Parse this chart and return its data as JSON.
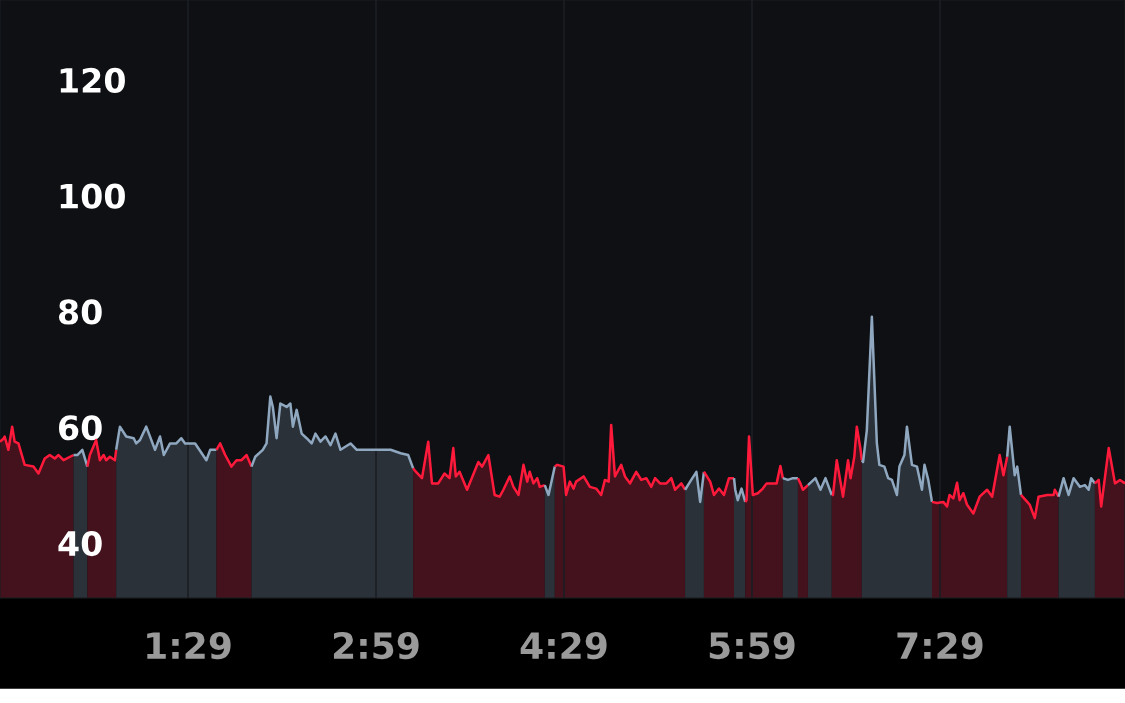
{
  "chart_data": {
    "type": "area",
    "xlim": [
      -0.017,
      8.96
    ],
    "ylim": [
      30.5,
      133.8
    ],
    "xticks": [
      {
        "value": 1.4833,
        "label": "1:29"
      },
      {
        "value": 2.9833,
        "label": "2:59"
      },
      {
        "value": 4.4833,
        "label": "4:29"
      },
      {
        "value": 5.9833,
        "label": "5:59"
      },
      {
        "value": 7.4833,
        "label": "7:29"
      }
    ],
    "yticks": [
      40,
      60,
      80,
      100,
      120
    ],
    "grid": "x",
    "line_style": "solid",
    "marker": "none",
    "series": [
      {
        "color": "#ff1a3c",
        "x": [
          -0.017,
          0.01,
          0.02,
          0.05,
          0.08,
          0.1,
          0.13,
          0.18,
          0.25,
          0.29,
          0.34,
          0.38,
          0.42,
          0.45,
          0.49,
          0.57
        ],
        "values": [
          57.5,
          58.0,
          58.4,
          56.1,
          60.1,
          57.5,
          57.2,
          53.5,
          53.2,
          52.0,
          54.6,
          55.2,
          54.6,
          55.2,
          54.3,
          55.2
        ]
      },
      {
        "color": "#8fa8c0",
        "x": [
          0.57,
          0.6,
          0.64,
          0.68
        ],
        "values": [
          55.2,
          55.2,
          56.1,
          53.2
        ]
      },
      {
        "color": "#ff1a3c",
        "x": [
          0.68,
          0.7,
          0.75,
          0.78,
          0.81,
          0.83,
          0.86,
          0.9,
          0.91
        ],
        "values": [
          53.2,
          55.2,
          57.8,
          54.3,
          55.2,
          54.3,
          54.9,
          54.3,
          56.1
        ]
      },
      {
        "color": "#8fa8c0",
        "x": [
          0.91,
          0.94,
          0.99,
          1.05,
          1.07,
          1.1,
          1.15,
          1.22,
          1.26,
          1.29,
          1.34,
          1.39,
          1.43,
          1.46,
          1.54,
          1.63,
          1.66,
          1.71
        ],
        "values": [
          56.1,
          60.1,
          58.4,
          58.1,
          57.2,
          57.8,
          60.1,
          56.1,
          58.4,
          55.2,
          57.2,
          57.2,
          58.1,
          57.2,
          57.2,
          54.3,
          56.1,
          56.1
        ]
      },
      {
        "color": "#ff1a3c",
        "x": [
          1.71,
          1.74,
          1.78,
          1.83,
          1.87,
          1.91,
          1.95,
          1.99
        ],
        "values": [
          56.1,
          57.2,
          55.2,
          53.2,
          54.3,
          54.3,
          55.2,
          53.2
        ]
      },
      {
        "color": "#8fa8c0",
        "x": [
          1.99,
          2.02,
          2.08,
          2.11,
          2.14,
          2.16,
          2.19,
          2.22,
          2.27,
          2.3,
          2.32,
          2.35,
          2.39,
          2.43,
          2.47,
          2.5,
          2.54,
          2.58,
          2.62,
          2.66,
          2.7,
          2.78,
          2.83,
          3.1,
          3.18,
          3.24,
          3.28
        ],
        "values": [
          53.2,
          54.9,
          56.1,
          57.2,
          65.3,
          63.5,
          58.1,
          64.1,
          63.5,
          64.1,
          60.1,
          63.0,
          58.9,
          58.1,
          57.2,
          58.9,
          57.5,
          58.4,
          56.9,
          58.9,
          56.1,
          57.2,
          56.1,
          56.1,
          55.5,
          55.2,
          52.9
        ]
      },
      {
        "color": "#ff1a3c",
        "x": [
          3.28,
          3.29,
          3.35,
          3.4,
          3.43,
          3.48,
          3.53,
          3.57,
          3.6,
          3.62,
          3.65,
          3.71,
          3.8,
          3.83,
          3.88,
          3.93,
          3.97,
          4.0,
          4.05,
          4.08,
          4.12,
          4.16,
          4.19,
          4.21,
          4.24,
          4.27,
          4.29,
          4.33
        ],
        "values": [
          52.9,
          52.6,
          51.2,
          57.5,
          50.3,
          50.3,
          52.0,
          51.2,
          56.4,
          51.5,
          52.3,
          49.2,
          54.0,
          53.2,
          55.2,
          48.3,
          48.0,
          49.2,
          51.5,
          49.7,
          48.3,
          53.5,
          50.6,
          52.3,
          50.3,
          51.2,
          49.7,
          50.0
        ]
      },
      {
        "color": "#8fa8c0",
        "x": [
          4.33,
          4.36,
          4.41
        ],
        "values": [
          50.0,
          48.3,
          53.2
        ]
      },
      {
        "color": "#ff1a3c",
        "x": [
          4.41,
          4.43,
          4.48,
          4.5,
          4.53,
          4.56,
          4.58,
          4.64,
          4.69,
          4.74,
          4.78,
          4.81,
          4.84,
          4.86,
          4.89,
          4.94,
          4.97,
          5.01,
          5.06,
          5.1,
          5.14,
          5.18,
          5.21,
          5.25,
          5.3,
          5.34,
          5.37,
          5.42,
          5.45
        ],
        "values": [
          53.2,
          53.5,
          53.2,
          48.3,
          50.6,
          49.4,
          50.6,
          51.5,
          49.7,
          49.4,
          48.3,
          50.9,
          50.6,
          60.4,
          51.5,
          53.5,
          51.5,
          50.3,
          52.3,
          50.9,
          51.2,
          49.7,
          51.2,
          50.3,
          50.3,
          51.2,
          49.2,
          50.3,
          49.2
        ]
      },
      {
        "color": "#8fa8c0",
        "x": [
          5.45,
          5.49,
          5.54,
          5.57,
          5.6
        ],
        "values": [
          49.2,
          50.6,
          52.3,
          47.1,
          52.3
        ]
      },
      {
        "color": "#ff1a3c",
        "x": [
          5.6,
          5.61,
          5.65,
          5.68,
          5.72,
          5.76,
          5.8,
          5.84
        ],
        "values": [
          52.3,
          52.0,
          50.6,
          48.3,
          49.4,
          48.3,
          51.2,
          51.2
        ]
      },
      {
        "color": "#8fa8c0",
        "x": [
          5.84,
          5.85,
          5.87,
          5.9,
          5.93
        ],
        "values": [
          51.2,
          49.2,
          47.4,
          49.4,
          47.1
        ]
      },
      {
        "color": "#ff1a3c",
        "x": [
          5.93,
          5.94,
          5.96,
          5.99,
          6.03,
          6.07,
          6.1,
          6.18,
          6.21,
          6.23
        ],
        "values": [
          47.1,
          47.4,
          58.4,
          48.3,
          48.6,
          49.4,
          50.3,
          50.3,
          53.3,
          51.2
        ]
      },
      {
        "color": "#8fa8c0",
        "x": [
          6.23,
          6.27,
          6.31,
          6.35
        ],
        "values": [
          51.2,
          50.9,
          51.2,
          51.2
        ]
      },
      {
        "color": "#ff1a3c",
        "x": [
          6.35,
          6.37,
          6.39,
          6.43
        ],
        "values": [
          51.2,
          50.3,
          49.2,
          50.0
        ]
      },
      {
        "color": "#8fa8c0",
        "x": [
          6.43,
          6.46,
          6.49,
          6.53,
          6.57,
          6.62
        ],
        "values": [
          50.0,
          50.6,
          51.2,
          49.2,
          51.2,
          48.3
        ]
      },
      {
        "color": "#ff1a3c",
        "x": [
          6.62,
          6.63,
          6.66,
          6.71,
          6.75,
          6.77,
          6.8,
          6.82,
          6.85,
          6.86
        ],
        "values": [
          48.3,
          48.3,
          54.3,
          48.0,
          54.3,
          51.2,
          54.9,
          60.1,
          56.1,
          54.3
        ]
      },
      {
        "color": "#8fa8c0",
        "x": [
          6.86,
          6.87,
          6.9,
          6.94,
          6.98,
          7.0,
          7.04,
          7.07,
          7.1,
          7.14,
          7.16,
          7.2,
          7.22,
          7.26,
          7.3,
          7.34,
          7.36,
          7.39,
          7.42
        ],
        "values": [
          54.3,
          54.0,
          59.5,
          79.1,
          57.2,
          53.5,
          53.2,
          51.2,
          50.9,
          48.3,
          53.2,
          55.2,
          60.1,
          53.5,
          53.2,
          49.2,
          53.5,
          50.9,
          47.1
        ]
      },
      {
        "color": "#ff1a3c",
        "x": [
          7.42,
          7.46,
          7.51,
          7.54,
          7.56,
          7.59,
          7.62,
          7.64,
          7.67,
          7.7,
          7.75,
          7.8,
          7.86,
          7.9,
          7.96,
          7.99,
          8.02
        ],
        "values": [
          47.1,
          46.9,
          47.1,
          46.3,
          48.3,
          47.7,
          50.4,
          47.4,
          48.6,
          46.6,
          45.1,
          48.0,
          49.2,
          48.0,
          55.2,
          51.7,
          54.9
        ]
      },
      {
        "color": "#8fa8c0",
        "x": [
          8.02,
          8.04,
          8.08,
          8.1,
          8.13
        ],
        "values": [
          54.9,
          60.1,
          51.7,
          53.2,
          48.3
        ]
      },
      {
        "color": "#ff1a3c",
        "x": [
          8.13,
          8.18,
          8.2,
          8.24,
          8.27,
          8.34,
          8.39,
          8.4,
          8.43
        ],
        "values": [
          48.3,
          47.1,
          46.6,
          44.3,
          48.0,
          48.3,
          48.3,
          49.2,
          48.0
        ]
      },
      {
        "color": "#8fa8c0",
        "x": [
          8.43,
          8.47,
          8.51,
          8.55,
          8.6,
          8.64,
          8.67,
          8.69,
          8.72
        ],
        "values": [
          48.0,
          51.2,
          48.3,
          51.2,
          49.7,
          50.0,
          49.2,
          51.2,
          50.3
        ]
      },
      {
        "color": "#ff1a3c",
        "x": [
          8.72,
          8.75,
          8.77,
          8.83,
          8.88,
          8.92,
          8.96
        ],
        "values": [
          50.3,
          50.9,
          46.3,
          56.4,
          50.3,
          50.9,
          50.3
        ]
      }
    ]
  }
}
